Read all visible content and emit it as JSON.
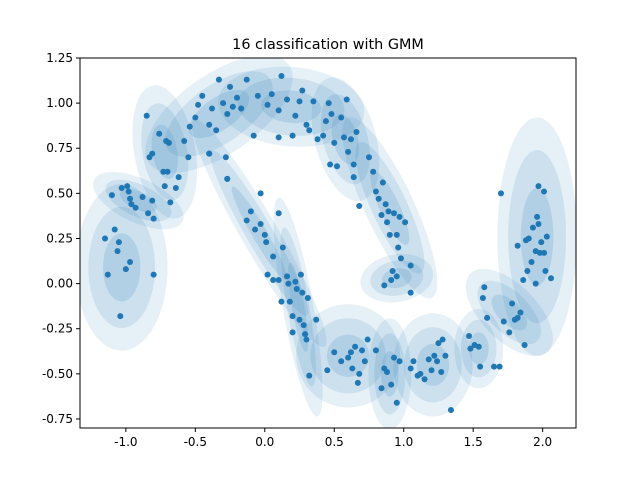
{
  "chart_data": {
    "type": "scatter",
    "title": "16 classification with GMM",
    "xlabel": "",
    "ylabel": "",
    "xlim": [
      -1.33,
      2.24
    ],
    "ylim": [
      -0.8,
      1.25
    ],
    "xticks": [
      "-1.0",
      "-0.5",
      "0.0",
      "0.5",
      "1.0",
      "1.5",
      "2.0"
    ],
    "xtick_values": [
      -1.0,
      -0.5,
      0.0,
      0.5,
      1.0,
      1.5,
      2.0
    ],
    "yticks": [
      "-0.75",
      "-0.50",
      "-0.25",
      "0.00",
      "0.25",
      "0.50",
      "0.75",
      "1.00",
      "1.25"
    ],
    "ytick_values": [
      -0.75,
      -0.5,
      -0.25,
      0.0,
      0.25,
      0.5,
      0.75,
      1.0,
      1.25
    ],
    "grid": false,
    "colors": {
      "points": "#1f77b4",
      "ellipse": "#1f77b4"
    },
    "points": [
      [
        -1.15,
        0.25
      ],
      [
        -1.13,
        0.05
      ],
      [
        -1.08,
        0.3
      ],
      [
        -1.05,
        0.23
      ],
      [
        -1.06,
        0.18
      ],
      [
        -1.04,
        -0.18
      ],
      [
        -1.0,
        0.08
      ],
      [
        -0.97,
        0.12
      ],
      [
        -0.8,
        0.05
      ],
      [
        -1.1,
        0.49
      ],
      [
        -1.03,
        0.53
      ],
      [
        -0.99,
        0.54
      ],
      [
        -0.98,
        0.51
      ],
      [
        -0.97,
        0.47
      ],
      [
        -0.96,
        0.44
      ],
      [
        -0.93,
        0.42
      ],
      [
        -0.88,
        0.48
      ],
      [
        -0.84,
        0.39
      ],
      [
        -0.8,
        0.36
      ],
      [
        -0.81,
        0.46
      ],
      [
        -0.68,
        0.45
      ],
      [
        -0.72,
        0.54
      ],
      [
        -0.85,
        0.93
      ],
      [
        -0.83,
        0.7
      ],
      [
        -0.81,
        0.72
      ],
      [
        -0.76,
        0.83
      ],
      [
        -0.73,
        0.62
      ],
      [
        -0.71,
        0.79
      ],
      [
        -0.7,
        0.62
      ],
      [
        -0.69,
        0.78
      ],
      [
        -0.64,
        0.53
      ],
      [
        -0.62,
        0.59
      ],
      [
        -0.58,
        0.79
      ],
      [
        -0.55,
        0.7
      ],
      [
        -0.54,
        0.87
      ],
      [
        -0.5,
        0.92
      ],
      [
        -0.48,
        0.99
      ],
      [
        -0.45,
        1.04
      ],
      [
        -0.4,
        0.88
      ],
      [
        -0.38,
        0.97
      ],
      [
        -0.35,
        0.85
      ],
      [
        -0.33,
        1.13
      ],
      [
        -0.3,
        1.0
      ],
      [
        -0.27,
        0.94
      ],
      [
        -0.25,
        1.09
      ],
      [
        -0.23,
        0.98
      ],
      [
        -0.2,
        1.03
      ],
      [
        -0.17,
        0.97
      ],
      [
        -0.13,
        1.13
      ],
      [
        -0.08,
        0.82
      ],
      [
        -0.05,
        1.04
      ],
      [
        -0.4,
        0.72
      ],
      [
        -0.28,
        0.7
      ],
      [
        -0.27,
        0.58
      ],
      [
        0.02,
        0.99
      ],
      [
        0.05,
        1.05
      ],
      [
        0.1,
        0.96
      ],
      [
        0.1,
        0.81
      ],
      [
        0.12,
        1.15
      ],
      [
        0.16,
        1.02
      ],
      [
        0.2,
        0.82
      ],
      [
        0.22,
        0.93
      ],
      [
        0.25,
        1.01
      ],
      [
        0.27,
        1.07
      ],
      [
        0.3,
        0.88
      ],
      [
        0.32,
        0.85
      ],
      [
        0.35,
        1.01
      ],
      [
        0.38,
        0.8
      ],
      [
        0.42,
        0.82
      ],
      [
        0.44,
        0.9
      ],
      [
        0.46,
        1.0
      ],
      [
        0.48,
        0.94
      ],
      [
        0.47,
        0.66
      ],
      [
        0.5,
        0.78
      ],
      [
        0.52,
        0.65
      ],
      [
        0.55,
        0.92
      ],
      [
        0.57,
        0.81
      ],
      [
        0.59,
        1.02
      ],
      [
        0.6,
        0.73
      ],
      [
        0.62,
        0.8
      ],
      [
        0.64,
        0.59
      ],
      [
        0.64,
        0.66
      ],
      [
        0.66,
        0.84
      ],
      [
        0.68,
        0.43
      ],
      [
        0.75,
        0.7
      ],
      [
        0.78,
        0.62
      ],
      [
        0.8,
        0.51
      ],
      [
        0.82,
        0.47
      ],
      [
        0.84,
        0.38
      ],
      [
        0.85,
        0.56
      ],
      [
        0.87,
        0.44
      ],
      [
        0.88,
        0.34
      ],
      [
        0.89,
        0.4
      ],
      [
        0.9,
        0.27
      ],
      [
        0.93,
        0.39
      ],
      [
        0.95,
        0.27
      ],
      [
        0.96,
        0.2
      ],
      [
        0.97,
        0.37
      ],
      [
        0.98,
        0.14
      ],
      [
        1.01,
        0.34
      ],
      [
        0.92,
        0.07
      ],
      [
        0.86,
        -0.01
      ],
      [
        0.91,
        0.02
      ],
      [
        0.95,
        0.04
      ],
      [
        1.05,
        0.1
      ],
      [
        1.05,
        -0.05
      ],
      [
        -0.4,
        0.72
      ],
      [
        -0.27,
        0.58
      ],
      [
        -0.13,
        0.35
      ],
      [
        -0.1,
        0.4
      ],
      [
        -0.07,
        0.3
      ],
      [
        -0.03,
        0.5
      ],
      [
        -0.03,
        0.33
      ],
      [
        0.0,
        0.27
      ],
      [
        0.01,
        0.23
      ],
      [
        0.02,
        0.05
      ],
      [
        0.06,
        0.02
      ],
      [
        0.06,
        0.15
      ],
      [
        0.1,
        0.02
      ],
      [
        0.1,
        0.39
      ],
      [
        0.12,
        -0.1
      ],
      [
        0.13,
        0.2
      ],
      [
        0.16,
        0.04
      ],
      [
        0.17,
        0.0
      ],
      [
        0.18,
        -0.1
      ],
      [
        0.2,
        -0.18
      ],
      [
        0.22,
        0.01
      ],
      [
        0.23,
        -0.03
      ],
      [
        0.25,
        -0.2
      ],
      [
        0.26,
        0.05
      ],
      [
        0.27,
        -0.05
      ],
      [
        0.28,
        -0.23
      ],
      [
        0.29,
        -0.28
      ],
      [
        0.3,
        -0.31
      ],
      [
        0.31,
        -0.08
      ],
      [
        0.32,
        -0.51
      ],
      [
        0.2,
        -0.27
      ],
      [
        0.37,
        -0.2
      ],
      [
        0.45,
        -0.48
      ],
      [
        0.5,
        -0.38
      ],
      [
        0.55,
        -0.43
      ],
      [
        0.6,
        -0.41
      ],
      [
        0.62,
        -0.38
      ],
      [
        0.63,
        -0.47
      ],
      [
        0.65,
        -0.35
      ],
      [
        0.67,
        -0.55
      ],
      [
        0.68,
        -0.5
      ],
      [
        0.7,
        -0.37
      ],
      [
        0.72,
        -0.43
      ],
      [
        0.74,
        -0.31
      ],
      [
        0.8,
        -0.37
      ],
      [
        0.84,
        -0.58
      ],
      [
        0.86,
        -0.47
      ],
      [
        0.88,
        -0.49
      ],
      [
        0.91,
        -0.56
      ],
      [
        0.93,
        -0.41
      ],
      [
        0.95,
        -0.66
      ],
      [
        0.97,
        -0.43
      ],
      [
        1.05,
        -0.47
      ],
      [
        1.07,
        -0.43
      ],
      [
        1.1,
        -0.51
      ],
      [
        1.12,
        -0.5
      ],
      [
        1.15,
        -0.53
      ],
      [
        1.18,
        -0.42
      ],
      [
        1.2,
        -0.48
      ],
      [
        1.22,
        -0.4
      ],
      [
        1.24,
        -0.43
      ],
      [
        1.25,
        -0.33
      ],
      [
        1.27,
        -0.49
      ],
      [
        1.28,
        -0.31
      ],
      [
        1.3,
        -0.4
      ],
      [
        1.34,
        -0.7
      ],
      [
        1.47,
        -0.29
      ],
      [
        1.48,
        -0.36
      ],
      [
        1.51,
        -0.34
      ],
      [
        1.54,
        -0.35
      ],
      [
        1.55,
        -0.46
      ],
      [
        1.57,
        -0.08
      ],
      [
        1.58,
        -0.02
      ],
      [
        1.6,
        -0.19
      ],
      [
        1.65,
        -0.46
      ],
      [
        1.69,
        -0.46
      ],
      [
        1.7,
        0.5
      ],
      [
        1.72,
        -0.21
      ],
      [
        1.76,
        -0.27
      ],
      [
        1.78,
        -0.11
      ],
      [
        1.8,
        -0.2
      ],
      [
        1.82,
        -0.19
      ],
      [
        1.84,
        -0.16
      ],
      [
        1.86,
        0.02
      ],
      [
        1.87,
        -0.34
      ],
      [
        1.88,
        0.24
      ],
      [
        1.89,
        0.07
      ],
      [
        1.9,
        0.25
      ],
      [
        1.92,
        0.12
      ],
      [
        1.93,
        0.31
      ],
      [
        1.95,
        0.18
      ],
      [
        1.96,
        0.37
      ],
      [
        1.97,
        0.33
      ],
      [
        1.97,
        0.54
      ],
      [
        1.98,
        0.17
      ],
      [
        1.99,
        0.23
      ],
      [
        2.01,
        0.51
      ],
      [
        2.01,
        0.17
      ],
      [
        2.02,
        0.07
      ],
      [
        2.03,
        0.26
      ],
      [
        2.06,
        0.03
      ],
      [
        1.82,
        0.21
      ],
      [
        1.95,
        0.0
      ]
    ],
    "components": [
      {
        "mean": [
          -1.03,
          0.09
        ],
        "sx": 0.15,
        "sy": 0.21,
        "angle": 0
      },
      {
        "mean": [
          -0.91,
          0.46
        ],
        "sx": 0.16,
        "sy": 0.055,
        "angle": -25
      },
      {
        "mean": [
          -0.72,
          0.73
        ],
        "sx": 0.1,
        "sy": 0.17,
        "angle": 10
      },
      {
        "mean": [
          -0.33,
          0.94
        ],
        "sx": 0.28,
        "sy": 0.1,
        "angle": 35
      },
      {
        "mean": [
          0.19,
          0.98
        ],
        "sx": 0.24,
        "sy": 0.1,
        "angle": -5
      },
      {
        "mean": [
          0.58,
          0.8
        ],
        "sx": 0.1,
        "sy": 0.16,
        "angle": 15
      },
      {
        "mean": [
          0.9,
          0.42
        ],
        "sx": 0.08,
        "sy": 0.25,
        "angle": 25
      },
      {
        "mean": [
          0.95,
          0.03
        ],
        "sx": 0.12,
        "sy": 0.06,
        "angle": 10
      },
      {
        "mean": [
          -0.04,
          0.28
        ],
        "sx": 0.06,
        "sy": 0.33,
        "angle": 30
      },
      {
        "mean": [
          0.24,
          -0.13
        ],
        "sx": 0.05,
        "sy": 0.28,
        "angle": 10
      },
      {
        "mean": [
          0.6,
          -0.4
        ],
        "sx": 0.17,
        "sy": 0.13,
        "angle": -20
      },
      {
        "mean": [
          0.9,
          -0.5
        ],
        "sx": 0.07,
        "sy": 0.14,
        "angle": 0
      },
      {
        "mean": [
          1.21,
          -0.45
        ],
        "sx": 0.13,
        "sy": 0.13,
        "angle": 0
      },
      {
        "mean": [
          1.54,
          -0.36
        ],
        "sx": 0.08,
        "sy": 0.1,
        "angle": 0
      },
      {
        "mean": [
          1.76,
          -0.16
        ],
        "sx": 0.18,
        "sy": 0.07,
        "angle": -45
      },
      {
        "mean": [
          1.96,
          0.26
        ],
        "sx": 0.13,
        "sy": 0.3,
        "angle": 0
      }
    ]
  }
}
